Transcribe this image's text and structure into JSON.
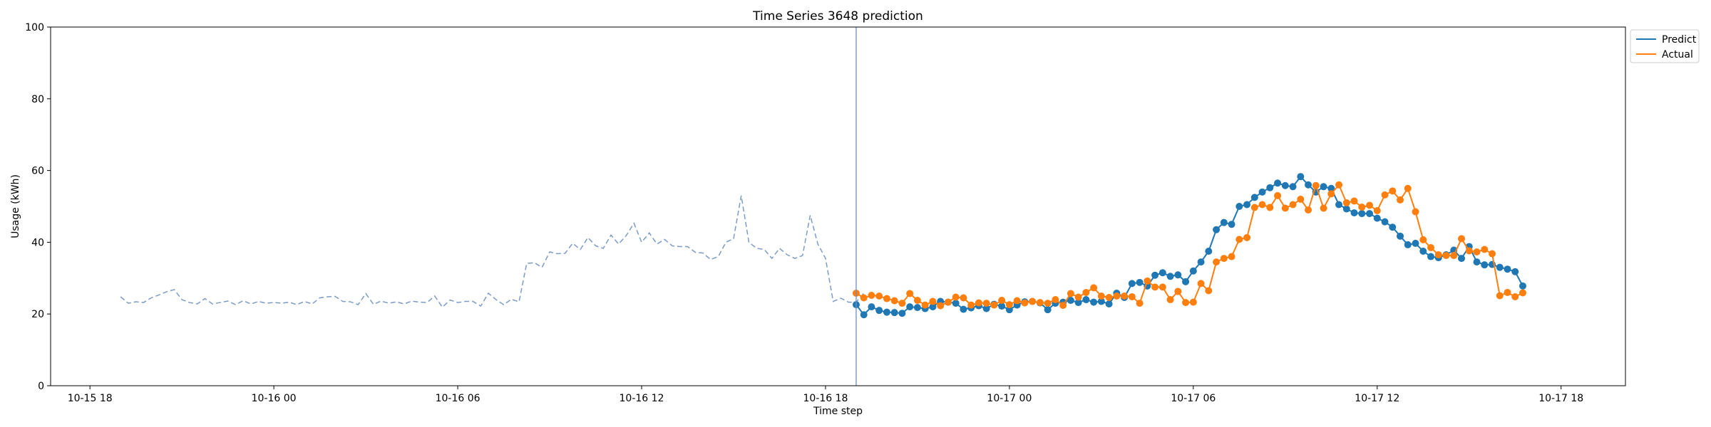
{
  "chart_data": {
    "type": "line",
    "title": "Time Series 3648 prediction",
    "xlabel": "Time step",
    "ylabel": "Usage (kWh)",
    "ylim": [
      0,
      100
    ],
    "y_ticks": [
      0,
      20,
      40,
      60,
      80,
      100
    ],
    "x_range": [
      "2024-10-15 16:43",
      "2024-10-17 20:06"
    ],
    "x_ticks": [
      {
        "t": "2024-10-15 18:00",
        "label": "10-15 18"
      },
      {
        "t": "2024-10-16 00:00",
        "label": "10-16 00"
      },
      {
        "t": "2024-10-16 06:00",
        "label": "10-16 06"
      },
      {
        "t": "2024-10-16 12:00",
        "label": "10-16 12"
      },
      {
        "t": "2024-10-16 18:00",
        "label": "10-16 18"
      },
      {
        "t": "2024-10-17 00:00",
        "label": "10-17 00"
      },
      {
        "t": "2024-10-17 06:00",
        "label": "10-17 06"
      },
      {
        "t": "2024-10-17 12:00",
        "label": "10-17 12"
      },
      {
        "t": "2024-10-17 18:00",
        "label": "10-17 18"
      }
    ],
    "split_time": "2024-10-16 19:00",
    "grid": false,
    "legend": "top-right",
    "series": [
      {
        "name": "",
        "style": "dashed",
        "color": "#7d9bc7",
        "start": "2024-10-15 19:00",
        "step_minutes": 15,
        "values": [
          24.8,
          23.0,
          23.4,
          23.2,
          24.5,
          25.3,
          26.2,
          26.8,
          24.0,
          23.2,
          22.8,
          24.3,
          22.8,
          23.2,
          23.6,
          22.6,
          23.7,
          22.8,
          23.5,
          23.0,
          23.2,
          23.0,
          23.3,
          22.6,
          23.5,
          22.8,
          24.5,
          24.8,
          24.9,
          23.5,
          23.4,
          22.6,
          25.7,
          22.7,
          23.6,
          23.0,
          23.4,
          22.8,
          23.6,
          23.3,
          23.2,
          25.0,
          21.9,
          23.9,
          23.2,
          23.5,
          23.5,
          22.2,
          25.8,
          24.0,
          22.6,
          24.1,
          23.4,
          34.1,
          34.3,
          33.0,
          37.3,
          36.8,
          36.9,
          39.7,
          38.0,
          41.3,
          39.0,
          38.3,
          42.0,
          39.5,
          41.9,
          45.3,
          40.0,
          42.6,
          39.5,
          40.8,
          39.0,
          38.8,
          38.8,
          37.2,
          37.0,
          35.2,
          36.0,
          40.0,
          41.0,
          53.0,
          40.0,
          38.3,
          38.0,
          35.5,
          38.3,
          36.5,
          35.5,
          36.3,
          47.5,
          39.5,
          35.5,
          23.5,
          24.4,
          23.3,
          23.3,
          25.8
        ]
      },
      {
        "name": "Predict",
        "style": "solid-marker",
        "color": "#1f77b4",
        "start": "2024-10-16 19:00",
        "step_minutes": 15,
        "values": [
          22.6,
          19.8,
          22.0,
          21.0,
          20.5,
          20.4,
          20.2,
          22.0,
          21.8,
          21.5,
          22.0,
          23.5,
          23.3,
          23.0,
          21.3,
          21.7,
          22.3,
          21.5,
          22.7,
          22.2,
          21.2,
          22.5,
          23.4,
          23.5,
          23.1,
          21.2,
          23.0,
          23.3,
          23.8,
          23.2,
          24.0,
          23.3,
          23.5,
          22.8,
          25.8,
          24.6,
          28.5,
          28.8,
          27.8,
          30.8,
          31.5,
          30.5,
          30.9,
          29.0,
          32.0,
          34.5,
          37.5,
          43.5,
          45.5,
          45.0,
          50.0,
          50.5,
          52.5,
          54.0,
          55.2,
          56.5,
          55.8,
          55.5,
          58.3,
          56.0,
          54.0,
          55.5,
          55.0,
          50.5,
          49.3,
          48.2,
          48.0,
          48.0,
          46.7,
          45.7,
          44.2,
          41.7,
          39.3,
          39.7,
          37.5,
          36.0,
          35.7,
          36.5,
          37.8,
          35.5,
          38.8,
          34.5,
          33.7,
          33.8,
          33.0,
          32.5,
          31.8,
          27.8
        ]
      },
      {
        "name": "Actual",
        "style": "solid-marker",
        "color": "#ff7f0e",
        "start": "2024-10-16 19:00",
        "step_minutes": 15,
        "values": [
          25.8,
          24.5,
          25.2,
          25.0,
          24.3,
          23.7,
          23.0,
          25.7,
          23.8,
          22.5,
          23.5,
          22.3,
          23.3,
          24.7,
          24.5,
          22.5,
          23.1,
          23.0,
          22.5,
          23.8,
          22.6,
          23.7,
          23.1,
          23.5,
          23.2,
          23.0,
          24.0,
          22.4,
          25.7,
          24.7,
          26.0,
          27.3,
          25.0,
          24.6,
          25.0,
          25.0,
          24.8,
          23.0,
          29.2,
          27.5,
          27.5,
          24.0,
          26.3,
          23.2,
          23.3,
          28.5,
          26.5,
          34.5,
          35.5,
          36.0,
          40.8,
          41.3,
          49.7,
          50.5,
          49.7,
          53.0,
          49.5,
          50.5,
          52.0,
          49.0,
          55.8,
          49.5,
          53.5,
          56.0,
          51.0,
          51.5,
          49.8,
          50.3,
          48.8,
          53.2,
          54.3,
          51.8,
          55.0,
          48.5,
          40.7,
          38.5,
          36.5,
          36.3,
          36.3,
          41.0,
          37.6,
          37.3,
          38.0,
          36.8,
          25.1,
          26.0,
          24.8,
          25.9
        ]
      }
    ]
  }
}
